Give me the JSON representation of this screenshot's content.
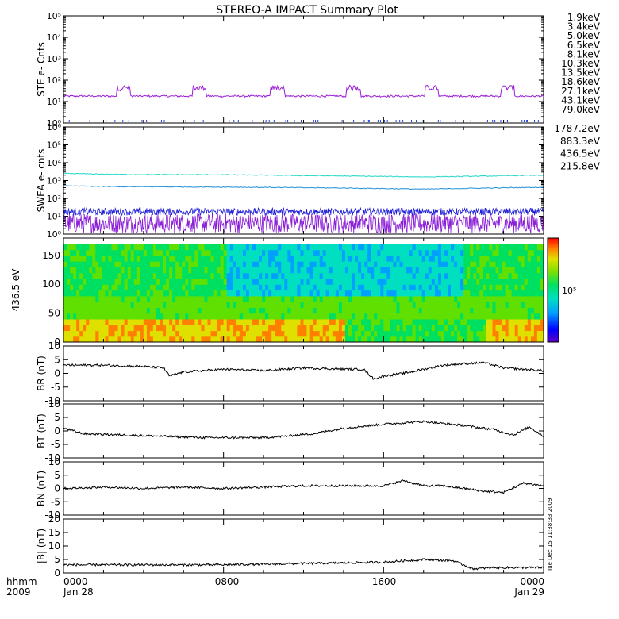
{
  "title": "STEREO-A IMPACT Summary Plot",
  "timestamp": "Tue Dec 15 11:38:33 2009",
  "colors": {
    "ste": [
      "#9a1fd6",
      "#6a1fe0",
      "#1f3ae0",
      "#1f8fe0",
      "#1fc8d8",
      "#1fd890",
      "#33d01f",
      "#9ad81f",
      "#d8d01f",
      "#e8a01f",
      "#e05a1f",
      "#d81f1f"
    ],
    "swea": [
      "#8a1fd6",
      "#1f1fd8",
      "#1f8fd8",
      "#1fd8c8"
    ],
    "line": "#000000",
    "colorbar": [
      "#6a00c8",
      "#0000ff",
      "#00a0ff",
      "#00e0c0",
      "#00e060",
      "#60e000",
      "#e0e000",
      "#ff8000",
      "#ff0000"
    ]
  },
  "chart_data": {
    "type": "line",
    "x_axis": {
      "row_label": "hhmm",
      "year_label": "2009",
      "ticks": [
        {
          "time": "0000",
          "date": "Jan 28"
        },
        {
          "time": "0800",
          "date": ""
        },
        {
          "time": "1600",
          "date": ""
        },
        {
          "time": "0000",
          "date": "Jan 29"
        }
      ],
      "range_hours": [
        0,
        24
      ]
    },
    "panels": [
      {
        "id": "ste",
        "ylabel": "STE e- Cnts",
        "scale": "log",
        "ytick_labels": [
          "10⁰",
          "10¹",
          "10²",
          "10³",
          "10⁴",
          "10⁵"
        ],
        "ylim": [
          1,
          100000
        ],
        "legend": [
          "1.9keV",
          "3.4keV",
          "5.0keV",
          "6.5keV",
          "8.1keV",
          "10.3keV",
          "13.5keV",
          "18.6keV",
          "27.1keV",
          "43.1keV",
          "79.0keV"
        ],
        "baseline_counts": 18,
        "bump_counts": 45,
        "bump_times_hours": [
          3.0,
          6.8,
          10.7,
          14.5,
          18.4,
          22.2
        ]
      },
      {
        "id": "swea",
        "ylabel": "SWEA e- cnts",
        "scale": "log",
        "ytick_labels": [
          "10⁰",
          "10¹",
          "10²",
          "10³",
          "10⁴",
          "10⁵",
          "10⁶"
        ],
        "ylim": [
          1,
          1000000
        ],
        "legend": [
          "1787.2eV",
          "883.3eV",
          "436.5eV",
          "215.8eV"
        ],
        "series": [
          {
            "name": "215.8eV",
            "x": [
              0,
              3,
              8,
              14,
              18,
              20,
              24
            ],
            "values": [
              2500,
              2200,
              2100,
              1800,
              1600,
              1700,
              2000
            ]
          },
          {
            "name": "436.5eV",
            "x": [
              0,
              3,
              8,
              14,
              18,
              20,
              24
            ],
            "values": [
              500,
              450,
              430,
              380,
              330,
              360,
              420
            ]
          },
          {
            "name": "883.3eV",
            "x": [
              0,
              24
            ],
            "values": [
              20,
              17
            ]
          },
          {
            "name": "1787.2eV",
            "x": [
              0,
              24
            ],
            "values": [
              4,
              4
            ]
          }
        ]
      },
      {
        "id": "pad",
        "ylabel": "436.5 eV",
        "scale": "linear",
        "type": "heatmap",
        "ylim": [
          0,
          180
        ],
        "yticks": [
          0,
          50,
          100,
          150
        ],
        "colorbar_label": "10⁵"
      },
      {
        "id": "br",
        "ylabel": "BR (nT)",
        "scale": "linear",
        "ylim": [
          -10,
          10
        ],
        "yticks": [
          -10,
          -5,
          0,
          5,
          10
        ],
        "x": [
          0,
          2,
          4,
          5,
          5.3,
          6,
          8,
          10,
          12,
          14,
          15,
          15.5,
          16,
          17,
          19,
          21,
          22,
          24
        ],
        "values": [
          3,
          3,
          2.5,
          2,
          -1,
          0.5,
          1.5,
          1,
          2,
          1.5,
          1.5,
          -2,
          -1,
          0,
          3,
          4,
          2,
          1
        ]
      },
      {
        "id": "bt",
        "ylabel": "BT (nT)",
        "scale": "linear",
        "ylim": [
          -10,
          10
        ],
        "yticks": [
          -10,
          -5,
          0,
          5,
          10
        ],
        "x": [
          0,
          1,
          3,
          5,
          7,
          9,
          10,
          11,
          12.5,
          14,
          16,
          18,
          20,
          21.5,
          22.5,
          23.3,
          24
        ],
        "values": [
          1,
          -1,
          -1.5,
          -2,
          -2.5,
          -2.5,
          -2.5,
          -2,
          -1,
          1,
          2.5,
          3.5,
          2,
          0.5,
          -1.5,
          1.5,
          -2
        ]
      },
      {
        "id": "bn",
        "ylabel": "BN (nT)",
        "scale": "linear",
        "ylim": [
          -10,
          10
        ],
        "yticks": [
          -10,
          -5,
          0,
          5,
          10
        ],
        "x": [
          0,
          2,
          4,
          6,
          8,
          10,
          12,
          14,
          16,
          17,
          18,
          19,
          21,
          22,
          23,
          24
        ],
        "values": [
          0,
          0.5,
          0,
          0.5,
          0,
          0.5,
          1,
          1,
          1,
          3,
          1,
          1,
          -1,
          -1.5,
          2,
          1
        ]
      },
      {
        "id": "bmag",
        "ylabel": "|B| (nT)",
        "scale": "linear",
        "ylim": [
          0,
          20
        ],
        "yticks": [
          0,
          5,
          10,
          15,
          20
        ],
        "x": [
          0,
          4,
          8,
          12,
          16,
          18,
          19.5,
          20.5,
          21.5,
          24
        ],
        "values": [
          3,
          3,
          3,
          3.5,
          4,
          5,
          4.5,
          1.5,
          2,
          2
        ]
      }
    ]
  }
}
